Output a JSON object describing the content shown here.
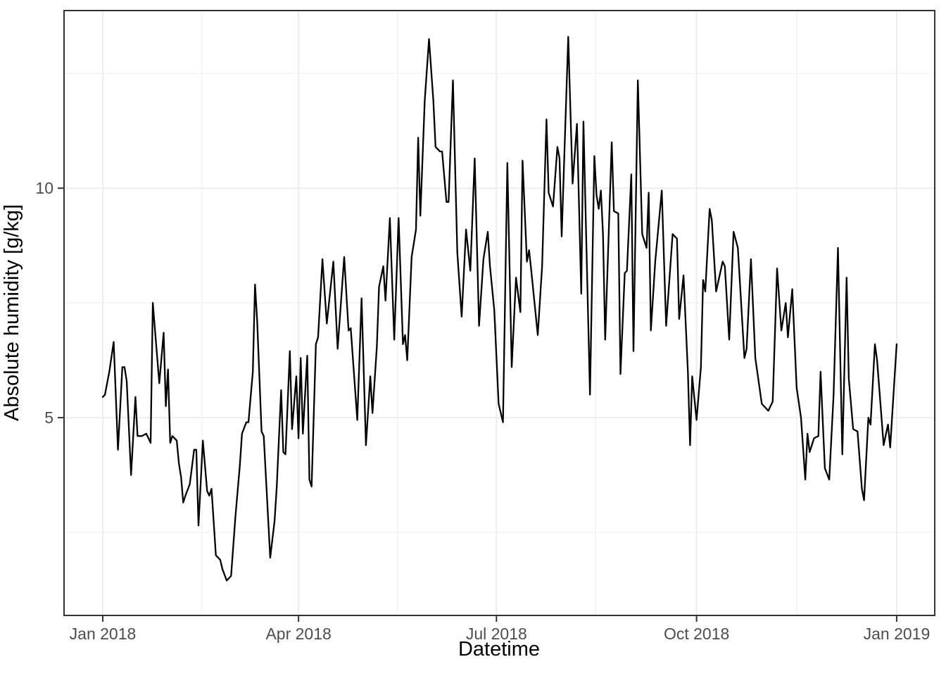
{
  "chart_data": {
    "type": "line",
    "title": "",
    "xlabel": "Datetime",
    "ylabel": "Absolute humidity [g/kg]",
    "x_unit": "days_since_2018-01-01",
    "x": [
      0,
      1,
      3,
      5,
      7,
      9,
      10,
      11,
      13,
      15,
      16,
      18,
      20,
      22,
      23,
      26,
      28,
      29,
      30,
      31,
      32,
      34,
      35,
      36,
      37,
      38,
      40,
      42,
      43,
      44,
      46,
      48,
      49,
      50,
      52,
      54,
      55,
      57,
      59,
      61,
      63,
      64,
      66,
      67,
      69,
      70,
      71,
      73,
      74,
      77,
      79,
      80,
      82,
      83,
      84,
      86,
      87,
      89,
      90,
      91,
      92,
      94,
      95,
      96,
      98,
      99,
      101,
      103,
      106,
      108,
      111,
      113,
      114,
      117,
      119,
      121,
      123,
      124,
      126,
      127,
      129,
      130,
      132,
      134,
      136,
      138,
      139,
      140,
      142,
      144,
      145,
      146,
      148,
      150,
      152,
      153,
      155,
      156,
      158,
      159,
      161,
      163,
      165,
      167,
      169,
      171,
      173,
      175,
      177,
      178,
      180,
      182,
      184,
      186,
      188,
      190,
      192,
      193,
      195,
      196,
      197,
      200,
      202,
      204,
      205,
      207,
      209,
      210,
      211,
      214,
      216,
      218,
      220,
      221,
      224,
      226,
      227,
      228,
      229,
      230,
      231,
      234,
      235,
      237,
      238,
      240,
      241,
      243,
      244,
      246,
      248,
      250,
      251,
      252,
      254,
      257,
      259,
      262,
      264,
      265,
      267,
      269,
      270,
      271,
      273,
      275,
      276,
      277,
      279,
      280,
      282,
      285,
      286,
      288,
      290,
      292,
      295,
      296,
      298,
      300,
      303,
      306,
      308,
      310,
      312,
      314,
      315,
      317,
      319,
      321,
      323,
      324,
      325,
      327,
      329,
      330,
      332,
      334,
      336,
      338,
      340,
      342,
      343,
      345,
      347,
      349,
      350,
      352,
      353,
      355,
      356,
      359,
      361,
      362,
      365
    ],
    "y": [
      5.45,
      5.5,
      6.0,
      6.65,
      4.3,
      6.1,
      6.1,
      5.8,
      3.75,
      5.45,
      4.6,
      4.6,
      4.65,
      4.45,
      7.5,
      5.75,
      6.85,
      5.25,
      6.05,
      4.45,
      4.6,
      4.5,
      4.0,
      3.7,
      3.15,
      3.3,
      3.55,
      4.3,
      4.3,
      2.65,
      4.5,
      3.4,
      3.3,
      3.45,
      2.0,
      1.9,
      1.7,
      1.45,
      1.55,
      2.85,
      3.95,
      4.65,
      4.9,
      4.9,
      6.0,
      7.9,
      7.1,
      4.7,
      4.6,
      1.95,
      2.75,
      3.5,
      5.6,
      4.25,
      4.2,
      6.45,
      4.75,
      5.9,
      4.55,
      6.3,
      4.65,
      6.35,
      3.65,
      3.5,
      6.6,
      6.75,
      8.45,
      7.05,
      8.4,
      6.5,
      8.5,
      6.9,
      6.95,
      4.95,
      7.6,
      4.4,
      5.9,
      5.1,
      6.55,
      7.85,
      8.3,
      7.55,
      9.35,
      6.7,
      9.35,
      6.6,
      6.8,
      6.25,
      8.5,
      9.1,
      11.1,
      9.4,
      11.9,
      13.25,
      11.9,
      10.9,
      10.8,
      10.8,
      9.7,
      9.7,
      12.35,
      8.6,
      7.2,
      9.1,
      8.2,
      10.65,
      7.0,
      8.45,
      9.05,
      8.3,
      7.35,
      5.3,
      4.9,
      10.55,
      6.1,
      8.05,
      7.3,
      10.6,
      8.4,
      8.65,
      8.2,
      6.8,
      8.3,
      11.5,
      9.9,
      9.6,
      10.9,
      10.65,
      8.95,
      13.3,
      10.1,
      11.4,
      7.7,
      11.45,
      5.5,
      10.7,
      9.85,
      9.55,
      9.95,
      9.0,
      6.7,
      11.0,
      9.5,
      9.45,
      5.95,
      8.15,
      8.2,
      10.3,
      6.45,
      12.35,
      9.0,
      8.7,
      9.9,
      6.9,
      8.4,
      9.95,
      7.0,
      9.0,
      8.9,
      7.15,
      8.1,
      6.0,
      4.4,
      5.9,
      4.95,
      6.1,
      8.0,
      7.75,
      9.55,
      9.3,
      7.75,
      8.4,
      8.3,
      6.7,
      9.05,
      8.7,
      6.3,
      6.5,
      8.45,
      6.3,
      5.3,
      5.15,
      5.35,
      8.25,
      6.9,
      7.5,
      6.75,
      7.8,
      5.65,
      5.0,
      3.65,
      4.65,
      4.25,
      4.55,
      4.6,
      6.0,
      3.9,
      3.65,
      5.5,
      8.7,
      4.2,
      8.05,
      5.85,
      4.75,
      4.7,
      3.45,
      3.2,
      5.0,
      4.85,
      6.6,
      6.25,
      4.4,
      4.85,
      4.35,
      6.6
    ],
    "x_ticks": [
      {
        "day": 0,
        "label": "Jan 2018"
      },
      {
        "day": 90,
        "label": "Apr 2018"
      },
      {
        "day": 181,
        "label": "Jul 2018"
      },
      {
        "day": 273,
        "label": "Oct 2018"
      },
      {
        "day": 365,
        "label": "Jan 2019"
      }
    ],
    "x_minor_days": [
      45.5,
      135.5,
      226.5,
      319
    ],
    "y_ticks": [
      {
        "value": 5,
        "label": "5"
      },
      {
        "value": 10,
        "label": "10"
      }
    ],
    "y_minor_values": [
      2.5,
      7.5,
      12.5
    ],
    "xlim_panel_days": [
      -17.8,
      382.5
    ],
    "ylim_panel": [
      0.69,
      13.87
    ],
    "grid": true,
    "legend": false,
    "line_color": "#000000",
    "colors": {
      "panel_background": "#ffffff",
      "panel_border": "#333333",
      "grid_major": "#ebebeb",
      "grid_minor": "#f2f2f2",
      "tick_mark": "#333333",
      "tick_label": "#4d4d4d",
      "axis_title": "#000000"
    }
  }
}
